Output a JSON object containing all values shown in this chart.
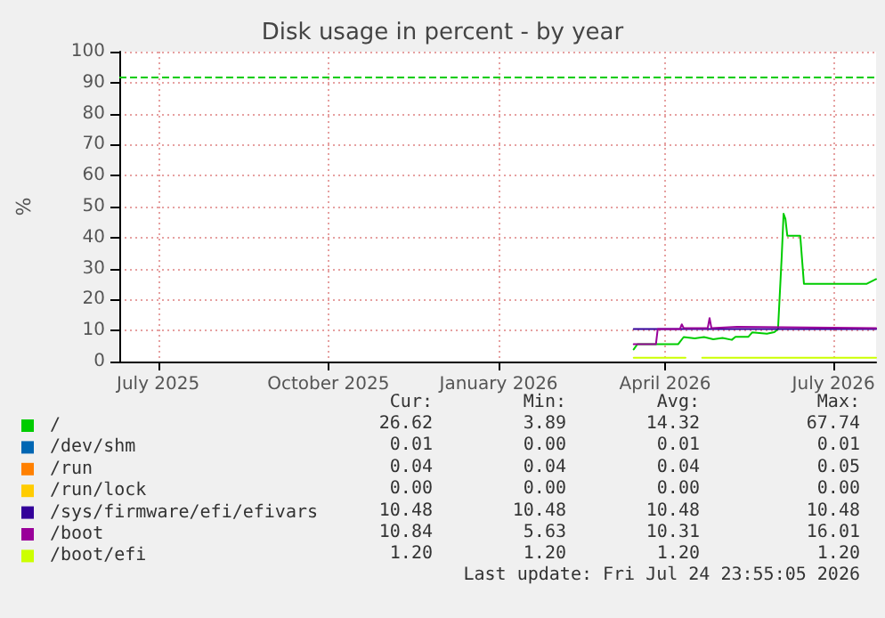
{
  "chart_data": {
    "type": "line",
    "title": "Disk usage in percent - by year",
    "ylabel": "%",
    "xlim": [
      "2025-06-10",
      "2026-07-24"
    ],
    "xticks": [
      {
        "value": "2025-07-01",
        "label": "July 2025"
      },
      {
        "value": "2025-10-01",
        "label": "October 2025"
      },
      {
        "value": "2026-01-01",
        "label": "January 2026"
      },
      {
        "value": "2026-04-01",
        "label": "April 2026"
      },
      {
        "value": "2026-07-01",
        "label": "July 2026"
      }
    ],
    "ylim": [
      0,
      100
    ],
    "yticks": [
      0,
      10,
      20,
      30,
      40,
      50,
      60,
      70,
      80,
      90,
      100
    ],
    "grid": true,
    "legend": "bottom left",
    "marker": "none",
    "line_style": "solid",
    "series": [
      {
        "name": "/",
        "color": "#00cc00",
        "x": [
          "2026-03-15",
          "2026-03-17",
          "2026-04-08",
          "2026-04-11",
          "2026-04-17",
          "2026-04-22",
          "2026-04-27",
          "2026-05-02",
          "2026-05-07",
          "2026-05-09",
          "2026-05-16",
          "2026-05-18",
          "2026-05-26",
          "2026-05-30",
          "2026-06-01",
          "2026-06-03",
          "2026-06-04",
          "2026-06-05",
          "2026-06-06",
          "2026-06-13",
          "2026-06-15",
          "2026-07-19",
          "2026-07-24"
        ],
        "values": [
          3.9,
          5.6,
          5.6,
          7.9,
          7.5,
          7.9,
          7.2,
          7.6,
          7.0,
          8.0,
          8.0,
          9.4,
          9.0,
          9.5,
          10.5,
          34,
          47.7,
          46,
          40.6,
          40.6,
          25.1,
          25.1,
          26.6
        ]
      },
      {
        "name": "/dev/shm",
        "color": "#0066b3"
      },
      {
        "name": "/run",
        "color": "#ff8000"
      },
      {
        "name": "/run/lock",
        "color": "#ffcc00"
      },
      {
        "name": "/sys/firmware/efi/efivars",
        "color": "#330099",
        "x": [
          "2026-03-15",
          "2026-07-24"
        ],
        "values": [
          10.5,
          10.5
        ]
      },
      {
        "name": "/boot",
        "color": "#990099",
        "x": [
          "2026-03-15",
          "2026-03-27",
          "2026-03-28",
          "2026-04-09",
          "2026-04-10",
          "2026-04-11",
          "2026-04-24",
          "2026-04-25",
          "2026-04-26",
          "2026-05-10",
          "2026-07-24"
        ],
        "values": [
          5.6,
          5.6,
          10.5,
          10.5,
          12,
          10.8,
          10.8,
          14,
          10.8,
          11.2,
          10.8
        ]
      },
      {
        "name": "/boot/efi",
        "color": "#ccff00",
        "x": [
          "2026-03-15",
          "2026-04-12",
          "2026-04-16",
          "2026-04-21",
          "2026-07-24"
        ],
        "values": [
          1.2,
          1.2,
          null,
          1.2,
          1.2
        ]
      }
    ],
    "ref_lines": [
      {
        "axis": "y",
        "value": 92,
        "color": "#00cc00",
        "line_style": "dashed"
      }
    ],
    "annotations": [
      "Cur:",
      "Min:",
      "Avg:",
      "Max:",
      "26.62",
      "3.89",
      "14.32",
      "67.74",
      "0.01",
      "0.00",
      "0.01",
      "0.01",
      "0.04",
      "0.04",
      "0.04",
      "0.05",
      "0.00",
      "0.00",
      "0.00",
      "0.00",
      "10.48",
      "10.48",
      "10.48",
      "10.48",
      "10.84",
      "5.63",
      "10.31",
      "16.01",
      "1.20",
      "1.20",
      "1.20",
      "1.20",
      "Last update: Fri Jul 24 23:55:05 2026"
    ]
  }
}
